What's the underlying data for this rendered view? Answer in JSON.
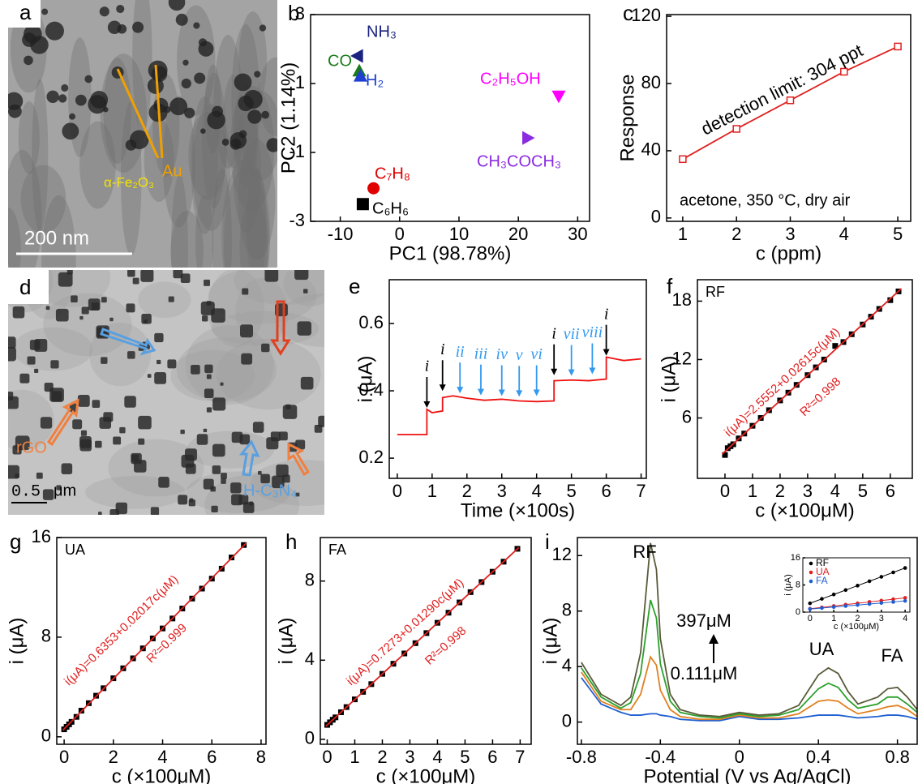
{
  "images": [
    {
      "panel": "a",
      "labels": [
        "Au",
        "α-Fe₂O₃"
      ],
      "scale_bar": "200 nm"
    },
    {
      "panel": "d",
      "labels": [
        "rGO",
        "H-C₃N₄"
      ],
      "scale_bar": "0.5",
      "scale_unit": "μm"
    }
  ],
  "chart_data": [
    {
      "panel": "b",
      "type": "scatter",
      "xlabel": "PC1 (98.78%)",
      "ylabel": "PC2 (1.14%)",
      "xlim": [
        -15,
        32
      ],
      "ylim": [
        -3,
        3
      ],
      "xticks": [
        -10,
        0,
        10,
        20,
        30
      ],
      "yticks": [
        -3,
        -1,
        1,
        3
      ],
      "point_labels": true,
      "series": [
        {
          "name": "NH₃",
          "color": "#1a237e",
          "marker": "triangle-left",
          "x": [
            -7
          ],
          "values": [
            1.8
          ]
        },
        {
          "name": "CO",
          "color": "#1b7a1b",
          "marker": "triangle-up",
          "x": [
            -6.8
          ],
          "values": [
            1.35
          ]
        },
        {
          "name": "H₂",
          "color": "#1e3fd0",
          "marker": "triangle-up",
          "x": [
            -6.6
          ],
          "values": [
            1.2
          ]
        },
        {
          "name": "C₂H₅OH",
          "color": "#ff00ff",
          "marker": "triangle-down",
          "x": [
            26.8
          ],
          "values": [
            0.65
          ]
        },
        {
          "name": "CH₃COCH₃",
          "color": "#8a2be2",
          "marker": "triangle-right",
          "x": [
            21.5
          ],
          "values": [
            -0.58
          ]
        },
        {
          "name": "C₇H₈",
          "color": "#e00000",
          "marker": "circle",
          "x": [
            -4.4
          ],
          "values": [
            -2.04
          ]
        },
        {
          "name": "C₆H₆",
          "color": "#000000",
          "marker": "square",
          "x": [
            -6.2
          ],
          "values": [
            -2.5
          ]
        }
      ]
    },
    {
      "panel": "c",
      "type": "line",
      "xlabel": "c (ppm)",
      "ylabel": "Response",
      "annotations": [
        "detection limit: 304 ppt",
        "acetone, 350 °C, dry air"
      ],
      "xlim": [
        0.7,
        5.24
      ],
      "ylim": [
        -2,
        121
      ],
      "xticks": [
        1,
        2,
        3,
        4,
        5
      ],
      "yticks": [
        0,
        40,
        80,
        120
      ],
      "x": [
        1,
        2,
        3,
        4,
        5
      ],
      "series": [
        {
          "color": "#e02020",
          "marker": "square-open",
          "mode": "lines+markers",
          "values": [
            35,
            53,
            70,
            87,
            102
          ]
        }
      ]
    },
    {
      "panel": "e",
      "type": "line",
      "xlabel": "Time (×100s)",
      "ylabel": "i (μA)",
      "xlim": [
        -0.23,
        7.15
      ],
      "ylim": [
        0.14,
        0.73
      ],
      "xticks": [
        0,
        1,
        2,
        3,
        4,
        5,
        6,
        7
      ],
      "yticks": [
        0.2,
        0.4,
        0.6
      ],
      "x": [
        0,
        0.85,
        0.85,
        1.0,
        1.3,
        1.3,
        1.6,
        2,
        2.5,
        3,
        3.5,
        4,
        4.5,
        4.5,
        5,
        5.5,
        6,
        6,
        6.5,
        7
      ],
      "series": [
        {
          "color": "#ee1111",
          "mode": "lines",
          "values": [
            0.27,
            0.27,
            0.345,
            0.335,
            0.34,
            0.38,
            0.385,
            0.378,
            0.372,
            0.375,
            0.37,
            0.368,
            0.37,
            0.43,
            0.432,
            0.43,
            0.435,
            0.5,
            0.49,
            0.495
          ]
        }
      ],
      "arrows": [
        {
          "label": "i",
          "x": 0.85,
          "color": "#000000"
        },
        {
          "label": "i",
          "x": 1.3,
          "color": "#000000"
        },
        {
          "label": "ii",
          "x": 1.8,
          "color": "#3399ee"
        },
        {
          "label": "iii",
          "x": 2.4,
          "color": "#3399ee"
        },
        {
          "label": "iv",
          "x": 3.0,
          "color": "#3399ee"
        },
        {
          "label": "v",
          "x": 3.5,
          "color": "#3399ee"
        },
        {
          "label": "vi",
          "x": 4.0,
          "color": "#3399ee"
        },
        {
          "label": "i",
          "x": 4.5,
          "color": "#000000"
        },
        {
          "label": "vii",
          "x": 5.0,
          "color": "#3399ee"
        },
        {
          "label": "viii",
          "x": 5.6,
          "color": "#3399ee"
        },
        {
          "label": "i",
          "x": 6.0,
          "color": "#000000"
        }
      ]
    },
    {
      "panel": "f",
      "type": "scatter",
      "tag": "RF",
      "xlabel": "c (×100μM)",
      "ylabel": "i (μA)",
      "equation": "i(μA)=2.5552+0.02615c(μM)",
      "r2": "R²=0.998",
      "xlim": [
        -1,
        6.8
      ],
      "ylim": [
        -0.2,
        20.2
      ],
      "xticks": [
        0,
        1,
        2,
        3,
        4,
        5,
        6
      ],
      "yticks": [
        6,
        12,
        18
      ],
      "series": [
        {
          "color": "#000000",
          "marker": "square",
          "x": [
            0,
            0.1,
            0.2,
            0.3,
            0.5,
            0.7,
            1.0,
            1.3,
            1.6,
            2.0,
            2.3,
            2.6,
            3.0,
            3.3,
            3.6,
            4.0,
            4.3,
            4.6,
            5.0,
            5.3,
            5.6,
            6.0,
            6.3
          ],
          "values": [
            2.2,
            2.9,
            3.1,
            3.3,
            3.9,
            4.4,
            5.2,
            6.0,
            6.8,
            7.8,
            8.6,
            9.4,
            10.4,
            11.2,
            12.0,
            13.4,
            13.8,
            14.6,
            15.6,
            16.4,
            17.2,
            18.1,
            19.0
          ]
        },
        {
          "color": "#e02020",
          "mode": "lines",
          "x": [
            -0.1,
            6.4
          ],
          "values": [
            2.29,
            19.29
          ]
        }
      ]
    },
    {
      "panel": "g",
      "type": "scatter",
      "tag": "UA",
      "xlabel": "c (×100μM)",
      "ylabel": "i (μA)",
      "equation": "i(μA)=0.6353+0.02017c(μM)",
      "r2": "R²=0.999",
      "xlim": [
        -0.3,
        8.2
      ],
      "ylim": [
        -0.6,
        16
      ],
      "xticks": [
        0,
        2,
        4,
        6,
        8
      ],
      "yticks": [
        0,
        8,
        16
      ],
      "series": [
        {
          "color": "#000000",
          "marker": "square",
          "x": [
            0,
            0.1,
            0.2,
            0.3,
            0.5,
            0.7,
            1.0,
            1.3,
            1.6,
            2.0,
            2.4,
            2.8,
            3.2,
            3.6,
            4.0,
            4.4,
            4.8,
            5.2,
            5.6,
            6.0,
            6.4,
            6.8,
            7.3
          ],
          "values": [
            0.6,
            0.8,
            1.0,
            1.2,
            1.6,
            2.1,
            2.7,
            3.3,
            3.9,
            4.7,
            5.5,
            6.3,
            7.1,
            7.9,
            8.7,
            9.5,
            10.3,
            11.1,
            11.9,
            12.7,
            13.5,
            14.4,
            15.4
          ]
        },
        {
          "color": "#e02020",
          "mode": "lines",
          "x": [
            -0.05,
            7.4
          ],
          "values": [
            0.53,
            15.56
          ]
        }
      ]
    },
    {
      "panel": "h",
      "type": "scatter",
      "tag": "FA",
      "xlabel": "c (×100μM)",
      "ylabel": "i (μA)",
      "equation": "i(μA)=0.7273+0.01290c(μM)",
      "r2": "R²=0.998",
      "xlim": [
        -0.25,
        7.4
      ],
      "ylim": [
        -0.25,
        10.2
      ],
      "xticks": [
        0,
        1,
        2,
        3,
        4,
        5,
        6,
        7
      ],
      "yticks": [
        0,
        4,
        8
      ],
      "series": [
        {
          "color": "#000000",
          "marker": "square",
          "x": [
            0,
            0.1,
            0.2,
            0.3,
            0.5,
            0.7,
            1.0,
            1.3,
            1.6,
            2.0,
            2.4,
            2.8,
            3.2,
            3.6,
            4.0,
            4.4,
            4.8,
            5.2,
            5.6,
            6.0,
            6.4,
            6.9
          ],
          "values": [
            0.73,
            0.86,
            0.99,
            1.11,
            1.37,
            1.63,
            2.02,
            2.4,
            2.79,
            3.31,
            3.82,
            4.34,
            4.86,
            5.37,
            5.89,
            6.4,
            6.92,
            7.44,
            7.95,
            8.47,
            8.98,
            9.63
          ]
        },
        {
          "color": "#e02020",
          "mode": "lines",
          "x": [
            -0.05,
            6.95
          ],
          "values": [
            0.66,
            9.69
          ]
        }
      ]
    },
    {
      "panel": "i",
      "type": "line",
      "xlabel": "Potential (V vs Ag/AgCl)",
      "ylabel": "i (μA)",
      "labels": [
        "RF",
        "397μM",
        "0.111μM",
        "UA",
        "FA"
      ],
      "xlim": [
        -0.82,
        0.9
      ],
      "ylim": [
        -1.6,
        13.3
      ],
      "xticks": [
        -0.8,
        -0.4,
        0,
        0.4,
        0.8
      ],
      "yticks": [
        0,
        4,
        8,
        12
      ],
      "x": [
        -0.8,
        -0.7,
        -0.6,
        -0.55,
        -0.5,
        -0.45,
        -0.42,
        -0.4,
        -0.35,
        -0.3,
        -0.2,
        -0.1,
        0,
        0.1,
        0.2,
        0.3,
        0.4,
        0.45,
        0.5,
        0.55,
        0.6,
        0.7,
        0.75,
        0.8,
        0.85,
        0.9
      ],
      "series": [
        {
          "color": "#1f5fd0",
          "mode": "lines",
          "values": [
            3.2,
            1.3,
            0.7,
            0.5,
            0.5,
            0.6,
            0.6,
            0.5,
            0.4,
            0.2,
            0.1,
            0.1,
            0.4,
            0.2,
            0.2,
            0.3,
            0.5,
            0.5,
            0.5,
            0.4,
            0.3,
            0.4,
            0.5,
            0.5,
            0.4,
            0.2
          ]
        },
        {
          "color": "#e08020",
          "mode": "lines",
          "values": [
            3.6,
            1.5,
            0.9,
            0.9,
            2.0,
            4.7,
            4.1,
            2.3,
            0.9,
            0.4,
            0.2,
            0.2,
            0.5,
            0.3,
            0.3,
            0.6,
            1.5,
            1.6,
            1.5,
            1.0,
            0.6,
            0.9,
            1.1,
            1.2,
            0.9,
            0.4
          ]
        },
        {
          "color": "#2ca02c",
          "mode": "lines",
          "values": [
            3.9,
            1.8,
            1.0,
            1.4,
            3.5,
            8.8,
            7.5,
            4.2,
            1.5,
            0.7,
            0.4,
            0.3,
            0.6,
            0.4,
            0.5,
            0.9,
            2.4,
            2.8,
            2.5,
            1.6,
            1.0,
            1.3,
            1.8,
            1.8,
            1.3,
            0.7
          ]
        },
        {
          "color": "#5a5a3a",
          "mode": "lines",
          "values": [
            4.3,
            2.0,
            1.2,
            1.8,
            5.0,
            12.9,
            11.0,
            6.0,
            2.0,
            0.9,
            0.5,
            0.4,
            0.7,
            0.5,
            0.6,
            1.2,
            3.4,
            3.9,
            3.5,
            2.2,
            1.3,
            1.8,
            2.4,
            2.5,
            1.8,
            0.9
          ]
        }
      ]
    },
    {
      "type": "line",
      "xlabel": "c (×100μM)",
      "ylabel": "i (μA)",
      "xlim": [
        -0.3,
        4.2
      ],
      "ylim": [
        0,
        16
      ],
      "xticks": [
        0,
        1,
        2,
        3,
        4
      ],
      "yticks": [
        0,
        8,
        16
      ],
      "legend": "upper left",
      "x": [
        0,
        0.5,
        1,
        1.5,
        2,
        2.5,
        3,
        3.5,
        4
      ],
      "series": [
        {
          "name": "RF",
          "color": "#000000",
          "marker": "circle",
          "mode": "lines+markers",
          "values": [
            2.6,
            3.9,
            5.2,
            6.5,
            7.8,
            9.1,
            10.4,
            11.7,
            13.0
          ]
        },
        {
          "name": "UA",
          "color": "#e02020",
          "marker": "circle",
          "mode": "lines+markers",
          "values": [
            1.0,
            1.4,
            1.8,
            2.2,
            2.6,
            3.0,
            3.4,
            3.8,
            4.2
          ]
        },
        {
          "name": "FA",
          "color": "#1f5fd0",
          "marker": "circle",
          "mode": "lines+markers",
          "values": [
            0.9,
            1.2,
            1.5,
            1.8,
            2.1,
            2.4,
            2.7,
            3.0,
            3.3
          ]
        }
      ]
    }
  ]
}
